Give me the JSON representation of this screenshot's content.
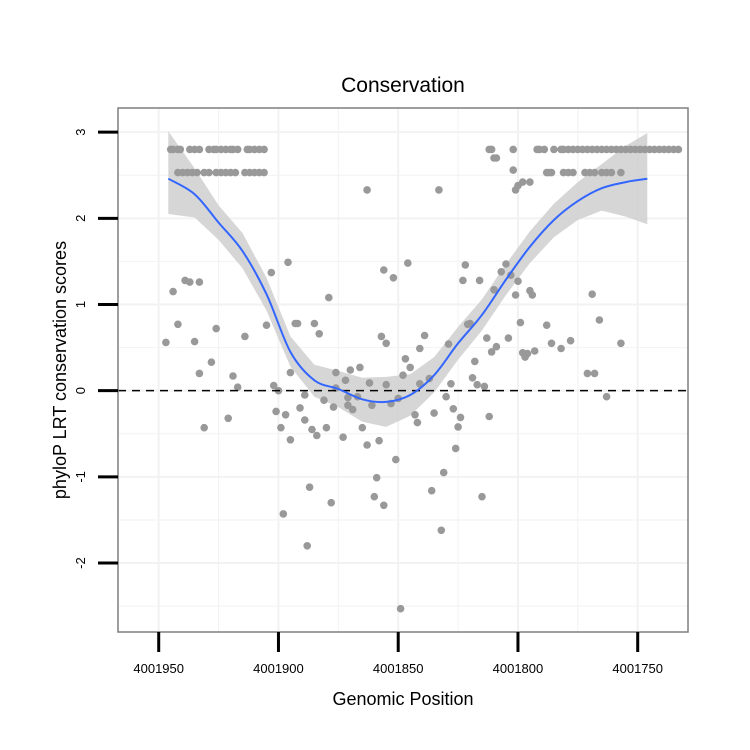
{
  "chart_data": {
    "type": "scatter",
    "title": "Conservation",
    "xlabel": "Genomic Position",
    "ylabel": "phyloP LRT conservation scores",
    "x_reversed": true,
    "xlim": [
      4001967,
      4001729
    ],
    "ylim": [
      -2.8,
      3.28
    ],
    "x_ticks": [
      {
        "value": 4001950,
        "label": "4001950"
      },
      {
        "value": 4001900,
        "label": "4001900"
      },
      {
        "value": 4001850,
        "label": "4001850"
      },
      {
        "value": 4001800,
        "label": "4001800"
      },
      {
        "value": 4001750,
        "label": "4001750"
      }
    ],
    "y_ticks": [
      {
        "value": 3,
        "label": "3"
      },
      {
        "value": 2,
        "label": "2"
      },
      {
        "value": 1,
        "label": "1"
      },
      {
        "value": 0,
        "label": "0"
      },
      {
        "value": -1,
        "label": "-1"
      },
      {
        "value": -2,
        "label": "-2"
      }
    ],
    "grid": true,
    "colors": {
      "points": "#999999",
      "smooth_line": "#3366FF",
      "confidence_band": "#cccccc",
      "reference_line": "#000000",
      "panel_border": "#7f7f7f",
      "grid": "#f2f2f2"
    },
    "reference_line": {
      "y": 0,
      "style": "dashed"
    },
    "points": [
      [
        4001945,
        2.8
      ],
      [
        4001944,
        2.8
      ],
      [
        4001942,
        2.8
      ],
      [
        4001941,
        2.8
      ],
      [
        4001937,
        2.8
      ],
      [
        4001935,
        2.8
      ],
      [
        4001933,
        2.8
      ],
      [
        4001929,
        2.8
      ],
      [
        4001927,
        2.8
      ],
      [
        4001926,
        2.8
      ],
      [
        4001924,
        2.8
      ],
      [
        4001922,
        2.8
      ],
      [
        4001920,
        2.8
      ],
      [
        4001919,
        2.8
      ],
      [
        4001917,
        2.8
      ],
      [
        4001913,
        2.8
      ],
      [
        4001912,
        2.8
      ],
      [
        4001910,
        2.8
      ],
      [
        4001908,
        2.8
      ],
      [
        4001906,
        2.8
      ],
      [
        4001942,
        2.53
      ],
      [
        4001940,
        2.53
      ],
      [
        4001938,
        2.53
      ],
      [
        4001936,
        2.53
      ],
      [
        4001934,
        2.53
      ],
      [
        4001931,
        2.53
      ],
      [
        4001929,
        2.53
      ],
      [
        4001926,
        2.53
      ],
      [
        4001924,
        2.53
      ],
      [
        4001922,
        2.53
      ],
      [
        4001920,
        2.53
      ],
      [
        4001918,
        2.53
      ],
      [
        4001914,
        2.53
      ],
      [
        4001912,
        2.53
      ],
      [
        4001910,
        2.53
      ],
      [
        4001908,
        2.53
      ],
      [
        4001906,
        2.53
      ],
      [
        4001792,
        2.8
      ],
      [
        4001791,
        2.8
      ],
      [
        4001789,
        2.8
      ],
      [
        4001785,
        2.8
      ],
      [
        4001782,
        2.8
      ],
      [
        4001781,
        2.8
      ],
      [
        4001779,
        2.8
      ],
      [
        4001777,
        2.8
      ],
      [
        4001775,
        2.8
      ],
      [
        4001773,
        2.8
      ],
      [
        4001771,
        2.8
      ],
      [
        4001769,
        2.8
      ],
      [
        4001767,
        2.8
      ],
      [
        4001765,
        2.8
      ],
      [
        4001763,
        2.8
      ],
      [
        4001761,
        2.8
      ],
      [
        4001759,
        2.8
      ],
      [
        4001757,
        2.8
      ],
      [
        4001755,
        2.8
      ],
      [
        4001753,
        2.8
      ],
      [
        4001751,
        2.8
      ],
      [
        4001749,
        2.8
      ],
      [
        4001747,
        2.8
      ],
      [
        4001745,
        2.8
      ],
      [
        4001743,
        2.8
      ],
      [
        4001741,
        2.8
      ],
      [
        4001739,
        2.8
      ],
      [
        4001737,
        2.8
      ],
      [
        4001735,
        2.8
      ],
      [
        4001733,
        2.8
      ],
      [
        4001811,
        2.8
      ],
      [
        4001812,
        2.8
      ],
      [
        4001802,
        2.8
      ],
      [
        4001810,
        2.7
      ],
      [
        4001809,
        2.7
      ],
      [
        4001788,
        2.53
      ],
      [
        4001787,
        2.53
      ],
      [
        4001786,
        2.53
      ],
      [
        4001781,
        2.53
      ],
      [
        4001779,
        2.53
      ],
      [
        4001777,
        2.53
      ],
      [
        4001772,
        2.53
      ],
      [
        4001770,
        2.53
      ],
      [
        4001768,
        2.53
      ],
      [
        4001765,
        2.53
      ],
      [
        4001763,
        2.53
      ],
      [
        4001761,
        2.53
      ],
      [
        4001757,
        2.53
      ],
      [
        4001802,
        2.56
      ],
      [
        4001798,
        2.42
      ],
      [
        4001795,
        2.42
      ],
      [
        4001801,
        2.33
      ],
      [
        4001800,
        2.38
      ],
      [
        4001863,
        2.33
      ],
      [
        4001947,
        0.56
      ],
      [
        4001944,
        1.15
      ],
      [
        4001942,
        0.77
      ],
      [
        4001939,
        1.28
      ],
      [
        4001937,
        1.26
      ],
      [
        4001935,
        0.57
      ],
      [
        4001933,
        0.2
      ],
      [
        4001933,
        1.26
      ],
      [
        4001931,
        -0.43
      ],
      [
        4001928,
        0.33
      ],
      [
        4001926,
        0.72
      ],
      [
        4001921,
        -0.32
      ],
      [
        4001919,
        0.17
      ],
      [
        4001917,
        0.04
      ],
      [
        4001914,
        0.63
      ],
      [
        4001905,
        0.76
      ],
      [
        4001903,
        1.37
      ],
      [
        4001902,
        0.06
      ],
      [
        4001901,
        -0.24
      ],
      [
        4001900,
        0
      ],
      [
        4001899,
        -0.43
      ],
      [
        4001898,
        -1.43
      ],
      [
        4001897,
        -0.28
      ],
      [
        4001896,
        1.49
      ],
      [
        4001895,
        -0.57
      ],
      [
        4001895,
        0.21
      ],
      [
        4001893,
        0.78
      ],
      [
        4001892,
        0.78
      ],
      [
        4001891,
        -0.2
      ],
      [
        4001889,
        -0.34
      ],
      [
        4001889,
        -0.05
      ],
      [
        4001888,
        -1.8
      ],
      [
        4001887,
        -1.12
      ],
      [
        4001886,
        -0.45
      ],
      [
        4001885,
        0.78
      ],
      [
        4001884,
        -0.52
      ],
      [
        4001883,
        0.66
      ],
      [
        4001881,
        -0.11
      ],
      [
        4001880,
        -0.43
      ],
      [
        4001879,
        1.08
      ],
      [
        4001878,
        -1.3
      ],
      [
        4001877,
        -0.19
      ],
      [
        4001876,
        0.21
      ],
      [
        4001876,
        0.03
      ],
      [
        4001873,
        -0.54
      ],
      [
        4001872,
        0.12
      ],
      [
        4001871,
        -0.08
      ],
      [
        4001871,
        -0.17
      ],
      [
        4001870,
        0.24
      ],
      [
        4001869,
        -0.22
      ],
      [
        4001867,
        -0.07
      ],
      [
        4001866,
        0.27
      ],
      [
        4001865,
        -0.43
      ],
      [
        4001863,
        -0.63
      ],
      [
        4001862,
        0.09
      ],
      [
        4001861,
        -0.17
      ],
      [
        4001860,
        -1.23
      ],
      [
        4001859,
        -1.01
      ],
      [
        4001858,
        -0.58
      ],
      [
        4001857,
        0.63
      ],
      [
        4001856,
        -1.33
      ],
      [
        4001856,
        1.4
      ],
      [
        4001855,
        0.07
      ],
      [
        4001855,
        0.55
      ],
      [
        4001853,
        -0.15
      ],
      [
        4001852,
        1.31
      ],
      [
        4001851,
        -0.8
      ],
      [
        4001850,
        -0.09
      ],
      [
        4001849,
        -2.53
      ],
      [
        4001848,
        0.18
      ],
      [
        4001847,
        0.37
      ],
      [
        4001846,
        1.48
      ],
      [
        4001845,
        0.27
      ],
      [
        4001843,
        -0.28
      ],
      [
        4001842,
        -0.37
      ],
      [
        4001841,
        0.08
      ],
      [
        4001841,
        0.49
      ],
      [
        4001839,
        0.64
      ],
      [
        4001837,
        0.14
      ],
      [
        4001836,
        -1.16
      ],
      [
        4001835,
        -0.26
      ],
      [
        4001833,
        2.33
      ],
      [
        4001832,
        -1.62
      ],
      [
        4001831,
        -0.95
      ],
      [
        4001830,
        -0.07
      ],
      [
        4001829,
        0.54
      ],
      [
        4001828,
        0.08
      ],
      [
        4001827,
        -0.21
      ],
      [
        4001826,
        -0.67
      ],
      [
        4001825,
        -0.42
      ],
      [
        4001824,
        -0.31
      ],
      [
        4001823,
        1.28
      ],
      [
        4001822,
        1.46
      ],
      [
        4001821,
        0.77
      ],
      [
        4001820,
        0.78
      ],
      [
        4001819,
        0.15
      ],
      [
        4001818,
        0.34
      ],
      [
        4001817,
        0.07
      ],
      [
        4001816,
        1.28
      ],
      [
        4001815,
        -1.23
      ],
      [
        4001814,
        0.05
      ],
      [
        4001813,
        0.61
      ],
      [
        4001812,
        -0.3
      ],
      [
        4001811,
        0.45
      ],
      [
        4001810,
        1.17
      ],
      [
        4001809,
        0.51
      ],
      [
        4001807,
        1.38
      ],
      [
        4001805,
        1.47
      ],
      [
        4001804,
        0.61
      ],
      [
        4001803,
        1.34
      ],
      [
        4001801,
        1.11
      ],
      [
        4001800,
        1.27
      ],
      [
        4001799,
        0.79
      ],
      [
        4001798,
        0.44
      ],
      [
        4001797,
        0.39
      ],
      [
        4001796,
        0.43
      ],
      [
        4001795,
        1.16
      ],
      [
        4001794,
        1.11
      ],
      [
        4001793,
        0.46
      ],
      [
        4001788,
        0.76
      ],
      [
        4001786,
        0.55
      ],
      [
        4001782,
        0.49
      ],
      [
        4001778,
        0.58
      ],
      [
        4001771,
        0.2
      ],
      [
        4001769,
        1.12
      ],
      [
        4001768,
        0.2
      ],
      [
        4001766,
        0.82
      ],
      [
        4001763,
        -0.07
      ],
      [
        4001757,
        0.55
      ]
    ],
    "smooth_line": [
      [
        4001946,
        2.46
      ],
      [
        4001935,
        2.28
      ],
      [
        4001925,
        1.95
      ],
      [
        4001915,
        1.62
      ],
      [
        4001905,
        1.12
      ],
      [
        4001895,
        0.45
      ],
      [
        4001885,
        0.12
      ],
      [
        4001875,
        0.02
      ],
      [
        4001865,
        -0.1
      ],
      [
        4001855,
        -0.13
      ],
      [
        4001845,
        -0.05
      ],
      [
        4001835,
        0.18
      ],
      [
        4001825,
        0.55
      ],
      [
        4001815,
        0.88
      ],
      [
        4001805,
        1.29
      ],
      [
        4001795,
        1.67
      ],
      [
        4001785,
        1.98
      ],
      [
        4001775,
        2.2
      ],
      [
        4001765,
        2.35
      ],
      [
        4001755,
        2.42
      ],
      [
        4001746,
        2.46
      ]
    ],
    "confidence_band": [
      [
        4001946,
        2.05,
        3.01
      ],
      [
        4001935,
        2.01,
        2.58
      ],
      [
        4001925,
        1.75,
        2.15
      ],
      [
        4001915,
        1.42,
        1.83
      ],
      [
        4001905,
        0.93,
        1.31
      ],
      [
        4001895,
        0.28,
        0.63
      ],
      [
        4001885,
        -0.07,
        0.3
      ],
      [
        4001875,
        -0.19,
        0.23
      ],
      [
        4001865,
        -0.36,
        0.15
      ],
      [
        4001855,
        -0.42,
        0.16
      ],
      [
        4001845,
        -0.29,
        0.19
      ],
      [
        4001835,
        -0.02,
        0.39
      ],
      [
        4001825,
        0.36,
        0.74
      ],
      [
        4001815,
        0.7,
        1.06
      ],
      [
        4001805,
        1.11,
        1.47
      ],
      [
        4001795,
        1.48,
        1.85
      ],
      [
        4001785,
        1.78,
        2.17
      ],
      [
        4001775,
        1.98,
        2.42
      ],
      [
        4001765,
        2.09,
        2.63
      ],
      [
        4001755,
        2.02,
        2.84
      ],
      [
        4001746,
        1.93,
        2.99
      ]
    ]
  }
}
